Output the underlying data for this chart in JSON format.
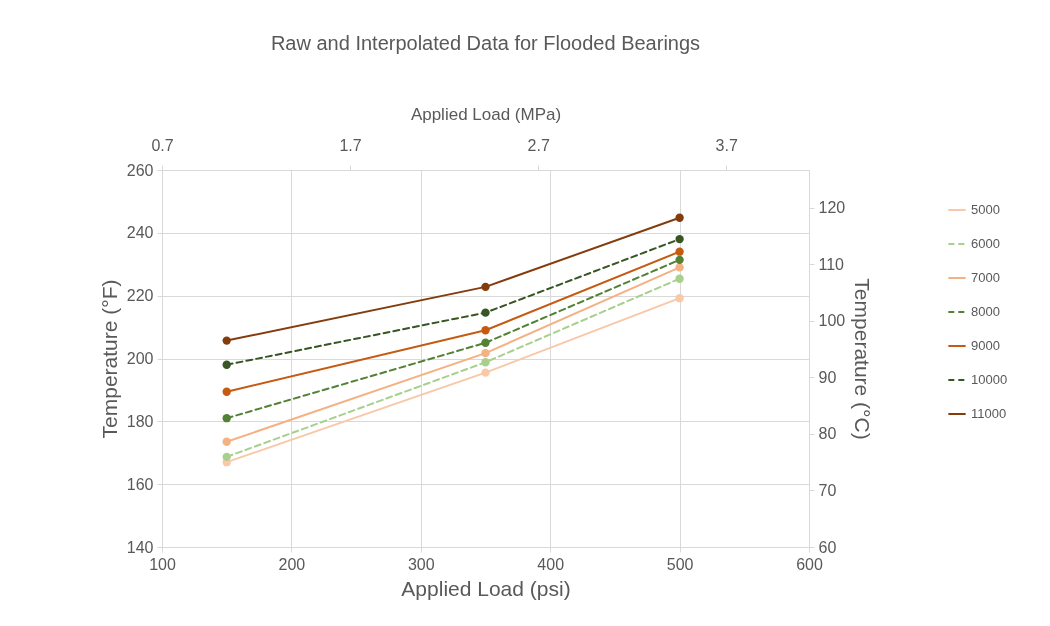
{
  "chart_data": {
    "type": "line",
    "title": "Raw and Interpolated Data for Flooded Bearings",
    "xlabel": "Applied Load (psi)",
    "ylabel": "Temperature (°F)",
    "x2label": "Applied Load (MPa)",
    "y2label": "Temperature (°C)",
    "x": [
      150,
      350,
      500
    ],
    "series": [
      {
        "name": "5000",
        "color": "#f8c8a8",
        "line_style": "solid",
        "values": [
          167,
          195.5,
          219.2
        ]
      },
      {
        "name": "6000",
        "color": "#a8d08d",
        "line_style": "dashed",
        "values": [
          168.7,
          198.8,
          225.4
        ]
      },
      {
        "name": "7000",
        "color": "#f4b183",
        "line_style": "solid",
        "values": [
          173.5,
          201.7,
          229
        ]
      },
      {
        "name": "8000",
        "color": "#548235",
        "line_style": "dashed",
        "values": [
          181,
          205,
          231.4
        ]
      },
      {
        "name": "9000",
        "color": "#c55a11",
        "line_style": "solid",
        "values": [
          189.4,
          209,
          234
        ]
      },
      {
        "name": "10000",
        "color": "#375623",
        "line_style": "dashed",
        "values": [
          198,
          214.6,
          238
        ]
      },
      {
        "name": "11000",
        "color": "#843c0c",
        "line_style": "solid",
        "values": [
          205.7,
          222.8,
          244.8
        ]
      }
    ],
    "xlim": [
      100,
      600
    ],
    "xticks": [
      100,
      200,
      300,
      400,
      500,
      600
    ],
    "ylim": [
      140,
      260
    ],
    "yticks": [
      140,
      160,
      180,
      200,
      220,
      240,
      260
    ],
    "x2lim": [
      0.7,
      4.14
    ],
    "x2ticks": [
      0.7,
      1.7,
      2.7,
      3.7
    ],
    "y2lim": [
      60,
      126.7
    ],
    "y2ticks": [
      60,
      70,
      80,
      90,
      100,
      110,
      120
    ],
    "grid": true,
    "legend": "right",
    "marker": "circle"
  }
}
